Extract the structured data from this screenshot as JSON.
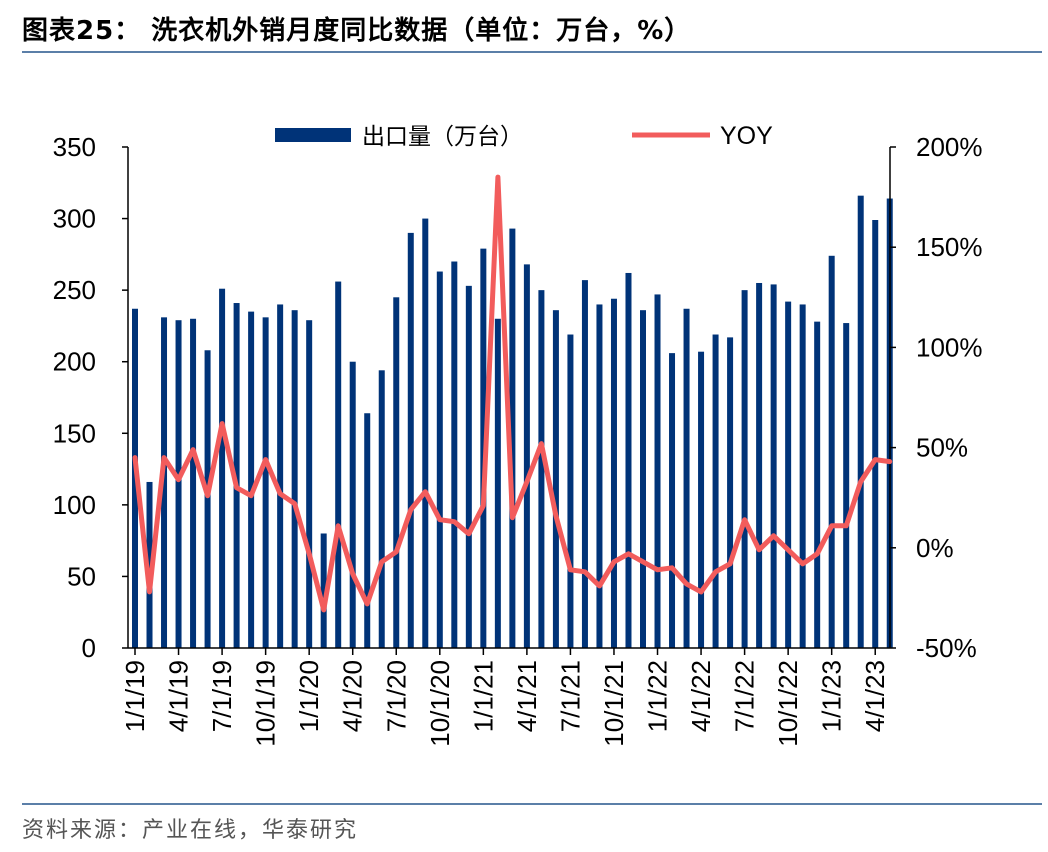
{
  "title": "图表25：  洗衣机外销月度同比数据（单位：万台，%）",
  "source": "资料来源：产业在线，华泰研究",
  "colors": {
    "bar": "#003378",
    "line": "#f25c5c",
    "rule": "#5b7fa8"
  },
  "legend": {
    "bar_label": "出口量（万台）",
    "line_label": "YOY"
  },
  "chart_data": {
    "type": "bar",
    "categories": [
      "1/1/19",
      "2/1/19",
      "3/1/19",
      "4/1/19",
      "5/1/19",
      "6/1/19",
      "7/1/19",
      "8/1/19",
      "9/1/19",
      "10/1/19",
      "11/1/19",
      "12/1/19",
      "1/1/20",
      "2/1/20",
      "3/1/20",
      "4/1/20",
      "5/1/20",
      "6/1/20",
      "7/1/20",
      "8/1/20",
      "9/1/20",
      "10/1/20",
      "11/1/20",
      "12/1/20",
      "1/1/21",
      "2/1/21",
      "3/1/21",
      "4/1/21",
      "5/1/21",
      "6/1/21",
      "7/1/21",
      "8/1/21",
      "9/1/21",
      "10/1/21",
      "11/1/21",
      "12/1/21",
      "1/1/22",
      "2/1/22",
      "3/1/22",
      "4/1/22",
      "5/1/22",
      "6/1/22",
      "7/1/22",
      "8/1/22",
      "9/1/22",
      "10/1/22",
      "11/1/22",
      "12/1/22",
      "1/1/23",
      "2/1/23",
      "3/1/23",
      "4/1/23",
      "5/1/23"
    ],
    "xtick_labels": [
      "1/1/19",
      "4/1/19",
      "7/1/19",
      "10/1/19",
      "1/1/20",
      "4/1/20",
      "7/1/20",
      "10/1/20",
      "1/1/21",
      "4/1/21",
      "7/1/21",
      "10/1/21",
      "1/1/22",
      "4/1/22",
      "7/1/22",
      "10/1/22",
      "1/1/23",
      "4/1/23"
    ],
    "series": [
      {
        "name": "出口量（万台）",
        "type": "bar",
        "axis": "left",
        "values": [
          237,
          116,
          231,
          229,
          230,
          208,
          251,
          241,
          235,
          231,
          240,
          236,
          229,
          80,
          256,
          200,
          164,
          194,
          245,
          290,
          300,
          263,
          270,
          253,
          279,
          230,
          293,
          268,
          250,
          236,
          219,
          257,
          240,
          244,
          262,
          236,
          247,
          206,
          237,
          207,
          219,
          217,
          250,
          255,
          254,
          242,
          240,
          228,
          274,
          227,
          316,
          299,
          314
        ]
      },
      {
        "name": "YOY",
        "type": "line",
        "axis": "right",
        "values": [
          45,
          -22,
          45,
          34,
          49,
          26,
          62,
          30,
          26,
          44,
          27,
          22,
          -3,
          -31,
          11,
          -13,
          -28,
          -7,
          -2,
          19,
          28,
          14,
          13,
          7,
          21,
          185,
          15,
          33,
          52,
          16,
          -11,
          -12,
          -19,
          -7,
          -3,
          -7,
          -11,
          -10,
          -18,
          -22,
          -12,
          -8,
          14,
          -1,
          6,
          -1,
          -8,
          -3,
          11,
          11,
          33,
          44,
          43
        ]
      }
    ],
    "yaxis_left": {
      "min": 0,
      "max": 350,
      "ticks": [
        0,
        50,
        100,
        150,
        200,
        250,
        300,
        350
      ]
    },
    "yaxis_right": {
      "min": -50,
      "max": 200,
      "ticks": [
        "-50%",
        "0%",
        "50%",
        "100%",
        "150%",
        "200%"
      ]
    },
    "grid": false,
    "legend_position": "top"
  }
}
